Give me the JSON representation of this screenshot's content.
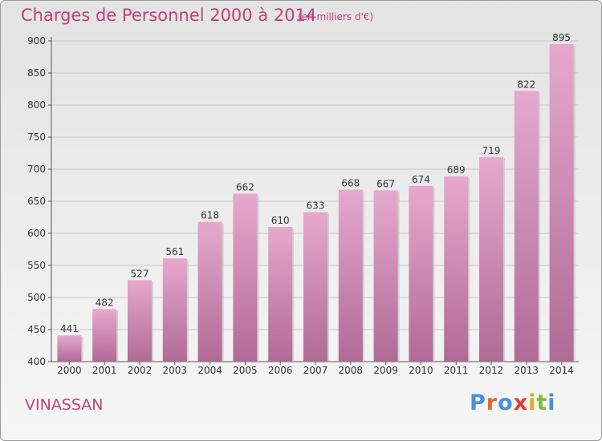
{
  "header": {
    "title": "Charges de Personnel 2000 à 2014",
    "subtitle": "(en milliers d'€)"
  },
  "footer": {
    "place": "VINASSAN",
    "logo": "Proxiti"
  },
  "colors": {
    "bar_top": "#e6a9cd",
    "bar_bottom": "#b06a96",
    "title": "#c0407e",
    "logo_letters": [
      "#4a90d9",
      "#e26b2e",
      "#4a90d9",
      "#e03c3c",
      "#e9a91c",
      "#7bbf3a",
      "#4a90d9"
    ]
  },
  "chart_data": {
    "type": "bar",
    "categories": [
      "2000",
      "2001",
      "2002",
      "2003",
      "2004",
      "2005",
      "2006",
      "2007",
      "2008",
      "2009",
      "2010",
      "2011",
      "2012",
      "2013",
      "2014"
    ],
    "values": [
      441,
      482,
      527,
      561,
      618,
      662,
      610,
      633,
      668,
      667,
      674,
      689,
      719,
      822,
      895
    ],
    "ylim": [
      400,
      900
    ],
    "yticks": [
      400,
      450,
      500,
      550,
      600,
      650,
      700,
      750,
      800,
      850,
      900
    ],
    "grid": true,
    "xlabel": "",
    "ylabel": ""
  }
}
